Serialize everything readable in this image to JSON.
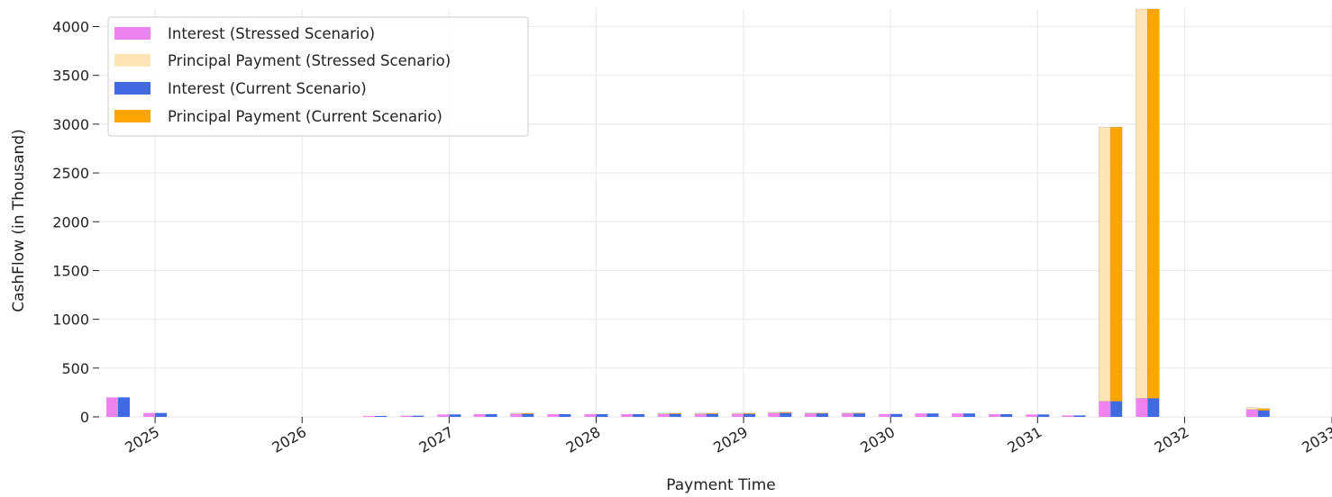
{
  "chart_data": {
    "type": "bar",
    "title": "",
    "xlabel": "Payment Time",
    "ylabel": "CashFlow (in Thousand)",
    "ylim": [
      0,
      4180
    ],
    "yticks": [
      0,
      500,
      1000,
      1500,
      2000,
      2500,
      3000,
      3500,
      4000
    ],
    "x_range": [
      "2024-08-15",
      "2033-01-01"
    ],
    "xticks": [
      "2025",
      "2026",
      "2027",
      "2028",
      "2029",
      "2030",
      "2031",
      "2032",
      "2033"
    ],
    "grid": true,
    "legend_position": "top-left",
    "stacked": true,
    "periods": [
      {
        "date": "2024-10-01",
        "stressed_interest": 200,
        "stressed_principal": 0,
        "current_interest": 200,
        "current_principal": 0
      },
      {
        "date": "2025-01-01",
        "stressed_interest": 40,
        "stressed_principal": 0,
        "current_interest": 40,
        "current_principal": 0
      },
      {
        "date": "2026-07-01",
        "stressed_interest": 10,
        "stressed_principal": 0,
        "current_interest": 10,
        "current_principal": 0
      },
      {
        "date": "2026-10-01",
        "stressed_interest": 12,
        "stressed_principal": 0,
        "current_interest": 12,
        "current_principal": 0
      },
      {
        "date": "2027-01-01",
        "stressed_interest": 25,
        "stressed_principal": 0,
        "current_interest": 25,
        "current_principal": 0
      },
      {
        "date": "2027-04-01",
        "stressed_interest": 28,
        "stressed_principal": 0,
        "current_interest": 28,
        "current_principal": 0
      },
      {
        "date": "2027-07-01",
        "stressed_interest": 30,
        "stressed_principal": 8,
        "current_interest": 30,
        "current_principal": 8
      },
      {
        "date": "2027-10-01",
        "stressed_interest": 28,
        "stressed_principal": 0,
        "current_interest": 28,
        "current_principal": 0
      },
      {
        "date": "2028-01-01",
        "stressed_interest": 28,
        "stressed_principal": 0,
        "current_interest": 28,
        "current_principal": 0
      },
      {
        "date": "2028-04-01",
        "stressed_interest": 28,
        "stressed_principal": 0,
        "current_interest": 28,
        "current_principal": 0
      },
      {
        "date": "2028-07-01",
        "stressed_interest": 30,
        "stressed_principal": 8,
        "current_interest": 30,
        "current_principal": 8
      },
      {
        "date": "2028-10-01",
        "stressed_interest": 30,
        "stressed_principal": 8,
        "current_interest": 30,
        "current_principal": 8
      },
      {
        "date": "2029-01-01",
        "stressed_interest": 30,
        "stressed_principal": 8,
        "current_interest": 30,
        "current_principal": 8
      },
      {
        "date": "2029-04-01",
        "stressed_interest": 40,
        "stressed_principal": 8,
        "current_interest": 40,
        "current_principal": 8
      },
      {
        "date": "2029-07-01",
        "stressed_interest": 35,
        "stressed_principal": 5,
        "current_interest": 35,
        "current_principal": 5
      },
      {
        "date": "2029-10-01",
        "stressed_interest": 35,
        "stressed_principal": 5,
        "current_interest": 35,
        "current_principal": 5
      },
      {
        "date": "2030-01-01",
        "stressed_interest": 30,
        "stressed_principal": 0,
        "current_interest": 30,
        "current_principal": 0
      },
      {
        "date": "2030-04-01",
        "stressed_interest": 35,
        "stressed_principal": 0,
        "current_interest": 35,
        "current_principal": 0
      },
      {
        "date": "2030-07-01",
        "stressed_interest": 35,
        "stressed_principal": 0,
        "current_interest": 35,
        "current_principal": 0
      },
      {
        "date": "2030-10-01",
        "stressed_interest": 28,
        "stressed_principal": 0,
        "current_interest": 28,
        "current_principal": 0
      },
      {
        "date": "2031-01-01",
        "stressed_interest": 25,
        "stressed_principal": 0,
        "current_interest": 25,
        "current_principal": 0
      },
      {
        "date": "2031-04-01",
        "stressed_interest": 15,
        "stressed_principal": 0,
        "current_interest": 15,
        "current_principal": 0
      },
      {
        "date": "2031-07-01",
        "stressed_interest": 160,
        "stressed_principal": 2810,
        "current_interest": 160,
        "current_principal": 2810
      },
      {
        "date": "2031-10-01",
        "stressed_interest": 190,
        "stressed_principal": 3990,
        "current_interest": 190,
        "current_principal": 3990
      },
      {
        "date": "2032-07-01",
        "stressed_interest": 75,
        "stressed_principal": 20,
        "current_interest": 65,
        "current_principal": 20
      }
    ],
    "series": [
      {
        "name": "Interest (Stressed Scenario)",
        "color": "#ee82ee"
      },
      {
        "name": "Principal Payment (Stressed Scenario)",
        "color": "#ffe4b5"
      },
      {
        "name": "Interest (Current Scenario)",
        "color": "#4169e1"
      },
      {
        "name": "Principal Payment (Current Scenario)",
        "color": "#ffa500"
      }
    ]
  }
}
